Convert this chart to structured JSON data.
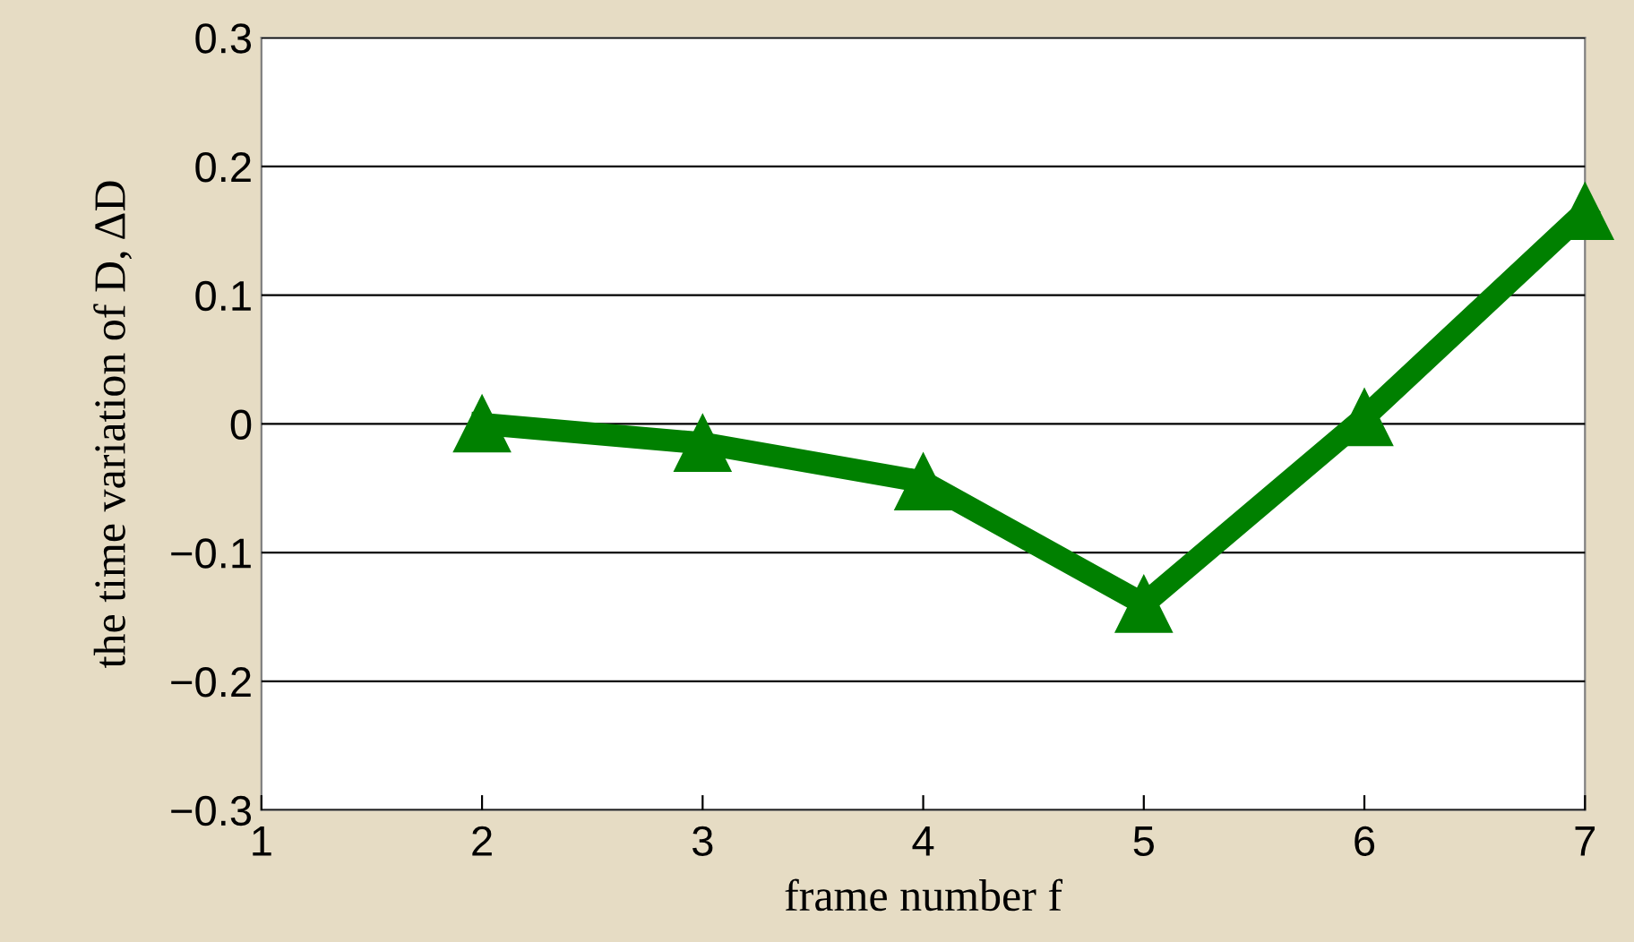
{
  "chart_data": {
    "type": "line",
    "xlabel": "frame number f",
    "ylabel": "the time variation of D, ΔD",
    "x": [
      2,
      3,
      4,
      5,
      6,
      7
    ],
    "series": [
      {
        "color": "#008000",
        "values": [
          0,
          -0.015,
          -0.045,
          -0.14,
          0.005,
          0.165
        ]
      }
    ],
    "xlim": [
      1,
      7
    ],
    "xticks": [
      1,
      2,
      3,
      4,
      5,
      6,
      7
    ],
    "ylim": [
      -0.3,
      0.3
    ],
    "yticks": [
      -0.3,
      -0.2,
      -0.1,
      0,
      0.1,
      0.2,
      0.3
    ],
    "grid": "y",
    "marker": "triangle",
    "line_style": "solid"
  }
}
